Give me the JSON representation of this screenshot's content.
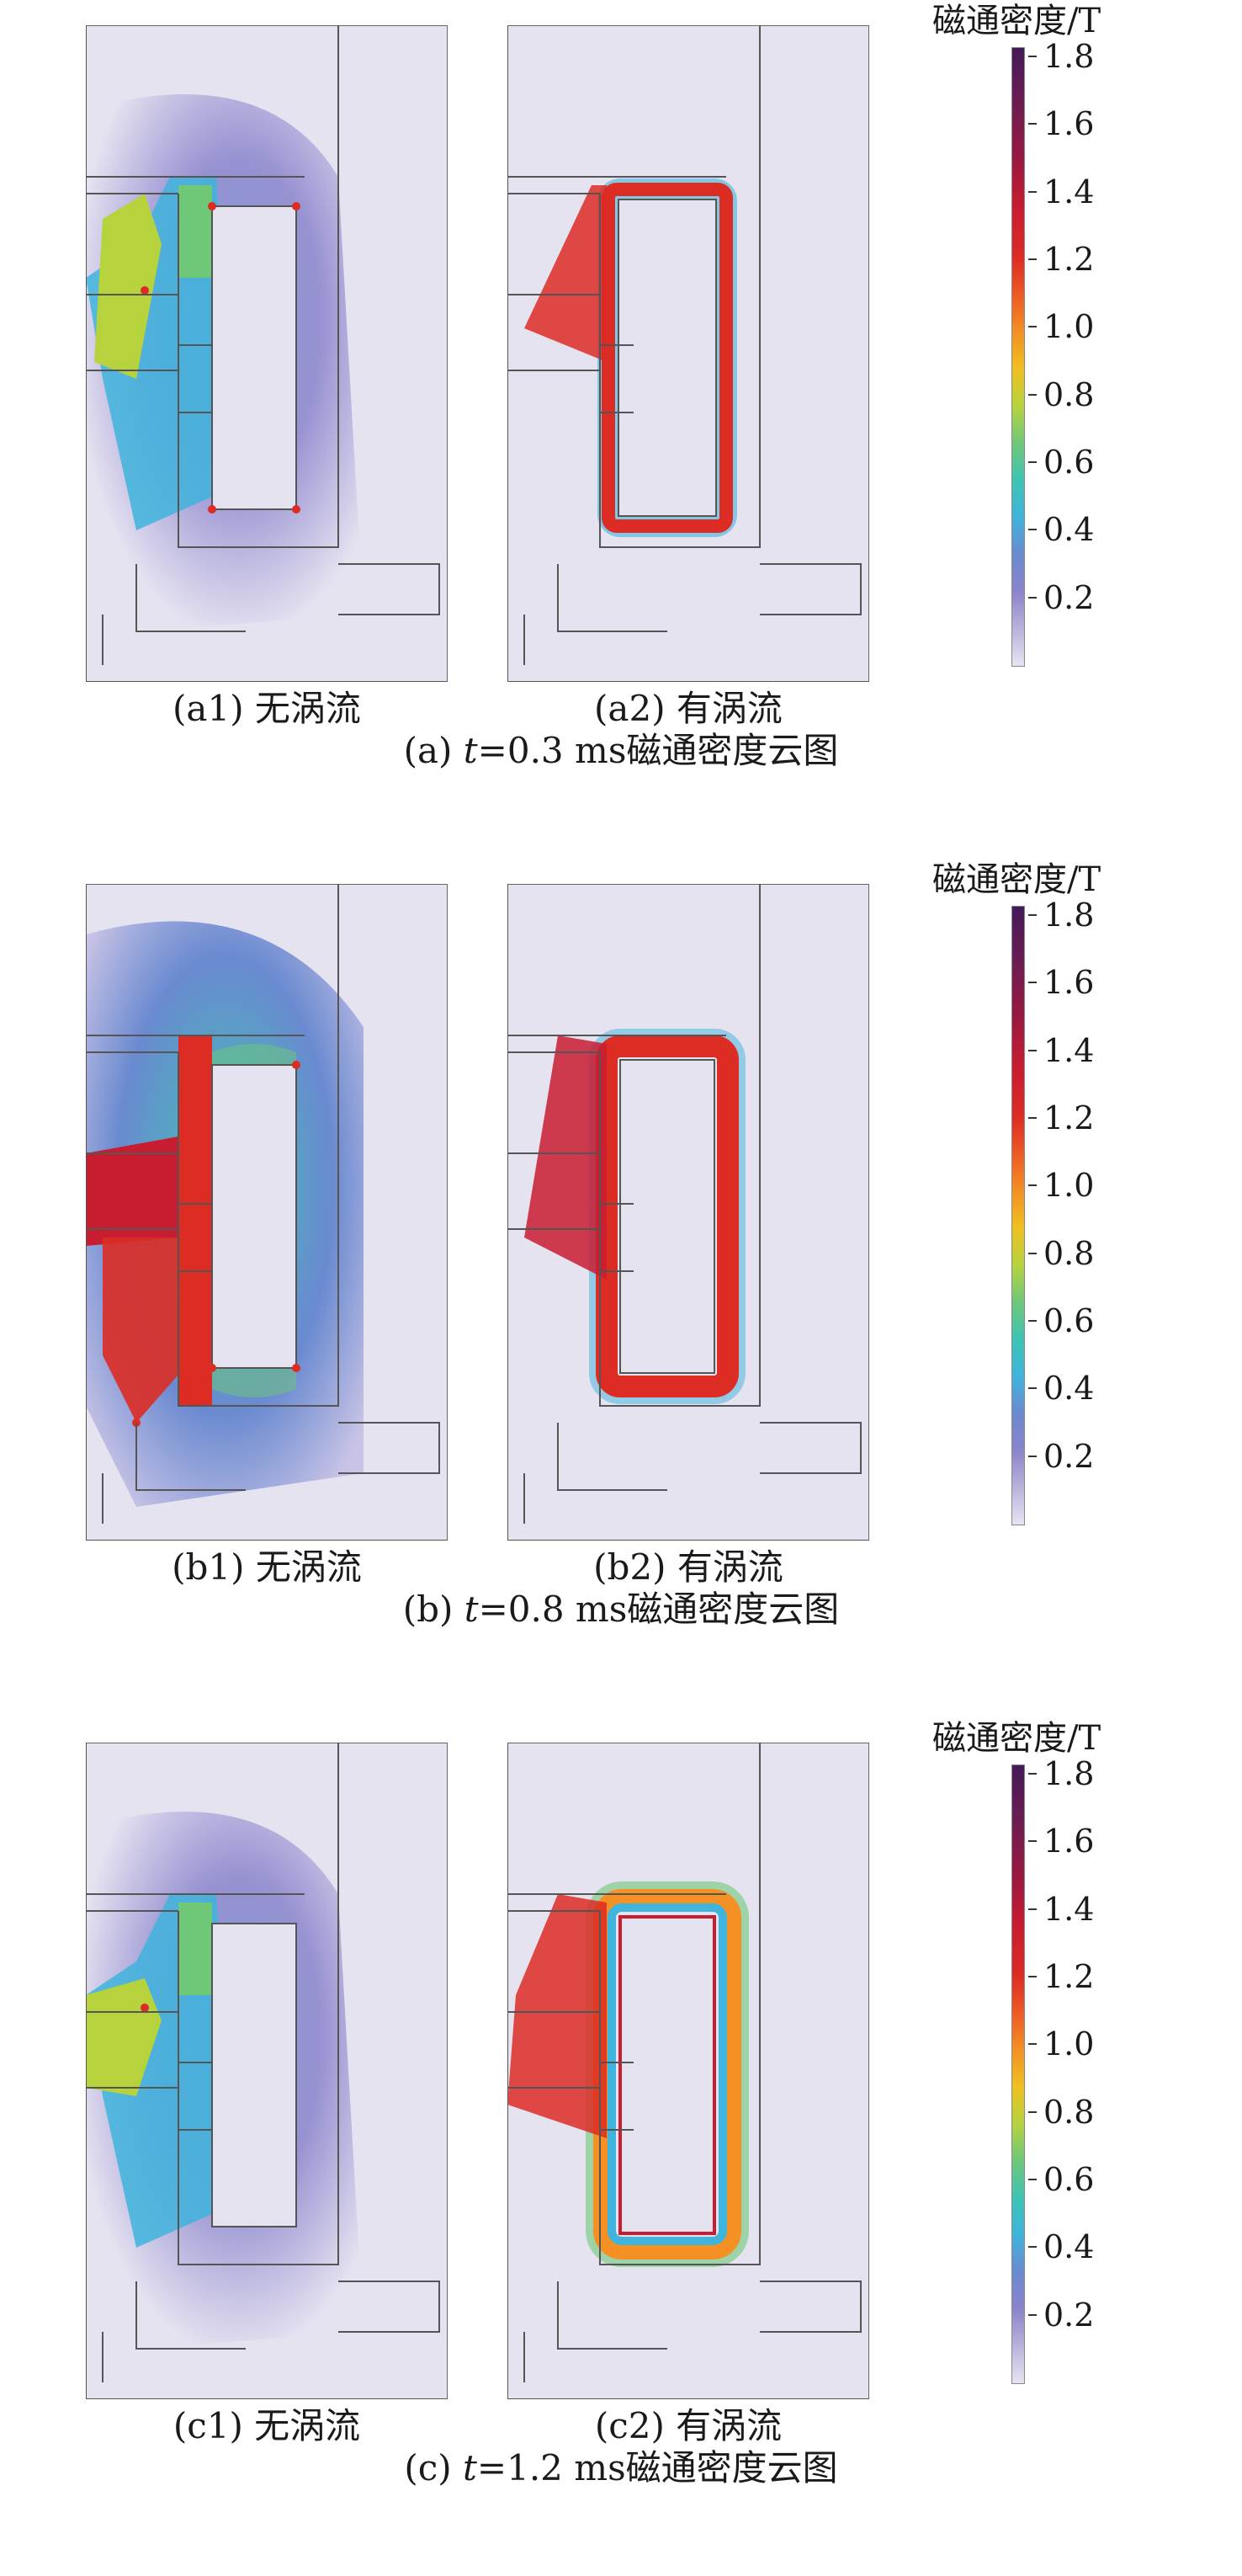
{
  "colorbar": {
    "title": "磁通密度/T",
    "ticks": [
      "1.8",
      "1.6",
      "1.4",
      "1.2",
      "1.0",
      "0.8",
      "0.6",
      "0.4",
      "0.2"
    ]
  },
  "panels": [
    {
      "id": "a",
      "left_label": "(a1) 无涡流",
      "right_label": "(a2) 有涡流",
      "caption_prefix": "(a) ",
      "caption_var": "t",
      "caption_value": "=0.3 ms磁通密度云图"
    },
    {
      "id": "b",
      "left_label": "(b1) 无涡流",
      "right_label": "(b2) 有涡流",
      "caption_prefix": "(b) ",
      "caption_var": "t",
      "caption_value": "=0.8 ms磁通密度云图"
    },
    {
      "id": "c",
      "left_label": "(c1) 无涡流",
      "right_label": "(c2) 有涡流",
      "caption_prefix": "(c) ",
      "caption_var": "t",
      "caption_value": "=1.2 ms磁通密度云图"
    }
  ],
  "colors": {
    "background_field": "#e6e3f1",
    "low": "#8a84cc",
    "mid": "#6ec878",
    "high": "#dc2c24",
    "peak": "#45195a"
  }
}
